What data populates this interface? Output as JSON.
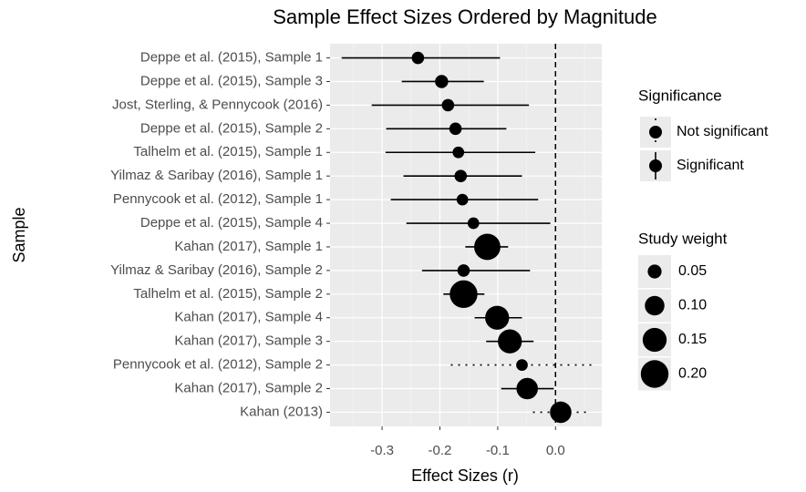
{
  "chart_data": {
    "type": "forest",
    "title": "Sample Effect Sizes Ordered by Magnitude",
    "x_label": "Effect Sizes (r)",
    "y_label": "Sample",
    "categories": [
      "Deppe et al. (2015), Sample 1",
      "Deppe et al. (2015), Sample 3",
      "Jost, Sterling, & Pennycook (2016)",
      "Deppe et al. (2015), Sample 2",
      "Talhelm et al. (2015), Sample 1",
      "Yilmaz & Saribay (2016), Sample 1",
      "Pennycook et al. (2012), Sample 1",
      "Deppe et al. (2015), Sample 4",
      "Kahan (2017), Sample 1",
      "Yilmaz & Saribay (2016), Sample 2",
      "Talhelm et al. (2015), Sample 2",
      "Kahan (2017), Sample 4",
      "Kahan (2017), Sample 3",
      "Pennycook et al. (2012), Sample 2",
      "Kahan (2017), Sample 2",
      "Kahan (2013)"
    ],
    "values": [
      -0.238,
      -0.197,
      -0.186,
      -0.173,
      -0.168,
      -0.164,
      -0.161,
      -0.142,
      -0.118,
      -0.159,
      -0.159,
      -0.101,
      -0.079,
      -0.058,
      -0.049,
      0.009
    ],
    "ci_low": [
      -0.37,
      -0.266,
      -0.318,
      -0.293,
      -0.294,
      -0.263,
      -0.285,
      -0.258,
      -0.156,
      -0.231,
      -0.194,
      -0.14,
      -0.12,
      -0.181,
      -0.094,
      -0.039
    ],
    "ci_high": [
      -0.096,
      -0.124,
      -0.046,
      -0.085,
      -0.035,
      -0.058,
      -0.03,
      -0.009,
      -0.082,
      -0.044,
      -0.123,
      -0.058,
      -0.038,
      0.063,
      -0.003,
      0.054
    ],
    "weights": [
      0.04,
      0.045,
      0.04,
      0.04,
      0.035,
      0.04,
      0.035,
      0.035,
      0.18,
      0.04,
      0.2,
      0.15,
      0.15,
      0.035,
      0.12,
      0.12
    ],
    "significant": [
      true,
      true,
      true,
      true,
      true,
      true,
      true,
      true,
      true,
      true,
      true,
      true,
      true,
      false,
      true,
      false
    ],
    "color": "#000000",
    "reference_line": 0,
    "xlim": [
      -0.39,
      0.08
    ],
    "xticks": [
      -0.3,
      -0.2,
      -0.1,
      {
        "value": 0,
        "label": "0.0"
      }
    ],
    "grid": true,
    "legend_significance": {
      "title": "Significance",
      "labels": [
        "Not significant",
        "Significant"
      ]
    },
    "legend_size": {
      "title": "Study weight",
      "values": [
        0.05,
        {
          "value": 0.1,
          "label": "0.10"
        },
        0.15,
        {
          "value": 0.2,
          "label": "0.20"
        }
      ]
    }
  }
}
